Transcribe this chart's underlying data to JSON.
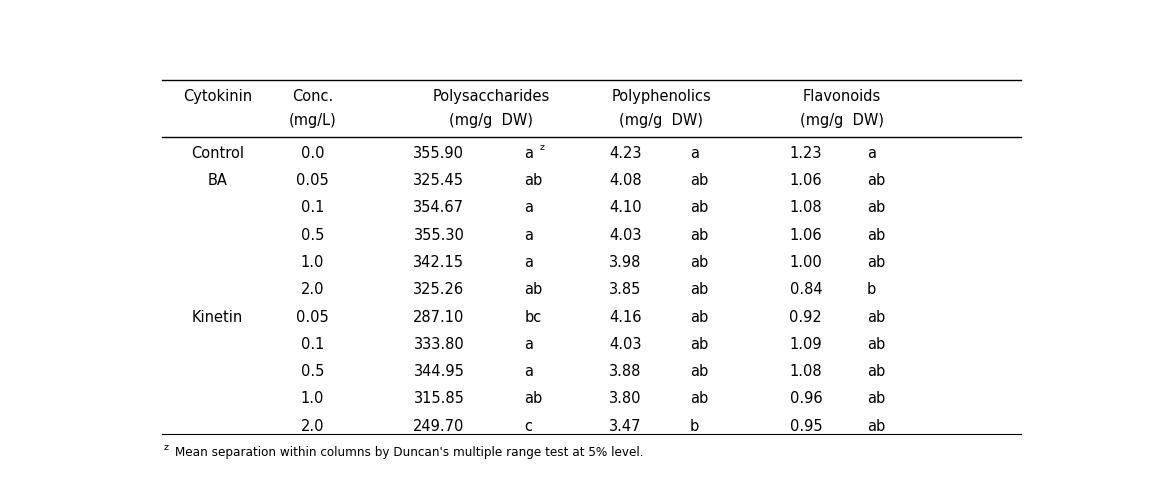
{
  "col_headers_row1": [
    "Cytokinin",
    "Conc.",
    "Polysaccharides",
    "Polyphenolics",
    "Flavonoids"
  ],
  "col_headers_row2": [
    "",
    "(mg/L)",
    "(mg/g  DW)",
    "(mg/g  DW)",
    "(mg/g  DW)"
  ],
  "rows": [
    [
      "Control",
      "0.0",
      "355.90",
      "az",
      "4.23",
      "a",
      "1.23",
      "a"
    ],
    [
      "BA",
      "0.05",
      "325.45",
      "ab",
      "4.08",
      "ab",
      "1.06",
      "ab"
    ],
    [
      "",
      "0.1",
      "354.67",
      "a",
      "4.10",
      "ab",
      "1.08",
      "ab"
    ],
    [
      "",
      "0.5",
      "355.30",
      "a",
      "4.03",
      "ab",
      "1.06",
      "ab"
    ],
    [
      "",
      "1.0",
      "342.15",
      "a",
      "3.98",
      "ab",
      "1.00",
      "ab"
    ],
    [
      "",
      "2.0",
      "325.26",
      "ab",
      "3.85",
      "ab",
      "0.84",
      "b"
    ],
    [
      "Kinetin",
      "0.05",
      "287.10",
      "bc",
      "4.16",
      "ab",
      "0.92",
      "ab"
    ],
    [
      "",
      "0.1",
      "333.80",
      "a",
      "4.03",
      "ab",
      "1.09",
      "ab"
    ],
    [
      "",
      "0.5",
      "344.95",
      "a",
      "3.88",
      "ab",
      "1.08",
      "ab"
    ],
    [
      "",
      "1.0",
      "315.85",
      "ab",
      "3.80",
      "ab",
      "0.96",
      "ab"
    ],
    [
      "",
      "2.0",
      "249.70",
      "c",
      "3.47",
      "b",
      "0.95",
      "ab"
    ]
  ],
  "footnote": "zMean separation within columns by Duncan's multiple range test at 5% level.",
  "bg_color": "#ffffff",
  "text_color": "#000000",
  "line_color": "#000000",
  "font_size": 10.5
}
